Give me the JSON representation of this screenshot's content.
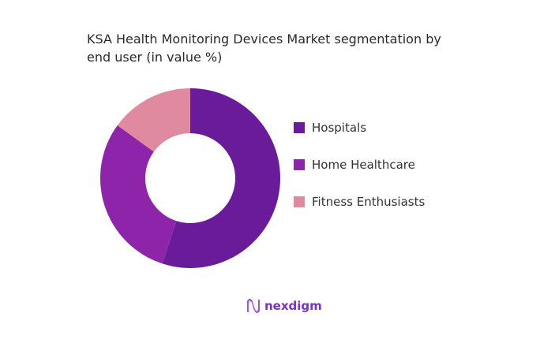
{
  "chart_data": {
    "type": "pie",
    "donut": true,
    "title": "KSA Health Monitoring Devices Market segmentation by end user (in value %)",
    "categories": [
      "Hospitals",
      "Home Healthcare",
      "Fitness Enthusiasts"
    ],
    "values": [
      55,
      30,
      15
    ],
    "colors": [
      "#6a1b9a",
      "#8e24aa",
      "#e08aa0"
    ],
    "legend_position": "right"
  },
  "logo": {
    "text": "nexdigm"
  }
}
